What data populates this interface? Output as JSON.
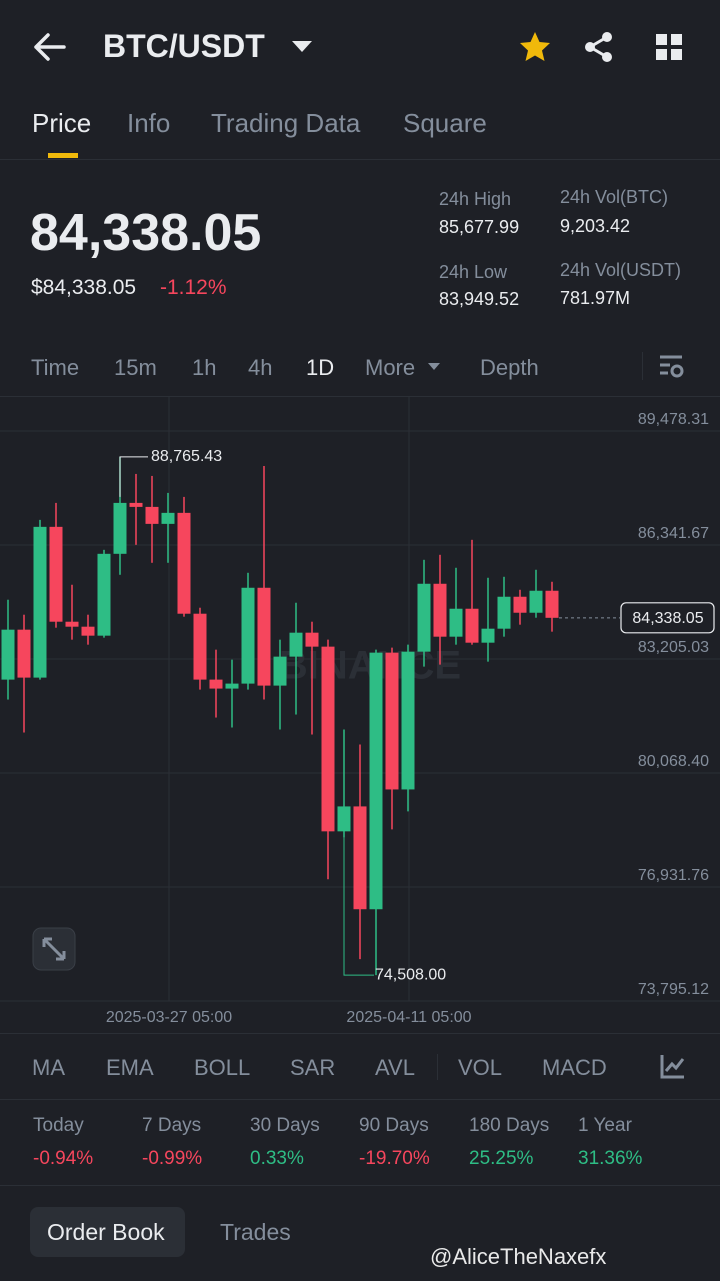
{
  "header": {
    "pair": "BTC/USDT"
  },
  "tabs": [
    "Price",
    "Info",
    "Trading Data",
    "Square"
  ],
  "price": {
    "last": "84,338.05",
    "usd": "$84,338.05",
    "change": "-1.12%"
  },
  "stats": [
    {
      "label": "24h High",
      "value": "85,677.99"
    },
    {
      "label": "24h Vol(BTC)",
      "value": "9,203.42"
    },
    {
      "label": "24h Low",
      "value": "83,949.52"
    },
    {
      "label": "24h Vol(USDT)",
      "value": "781.97M"
    }
  ],
  "intervals": [
    "Time",
    "15m",
    "1h",
    "4h",
    "1D",
    "More",
    "Depth"
  ],
  "chart": {
    "type": "candlestick",
    "watermark": "BINANCE",
    "up_color": "#2ebd85",
    "down_color": "#f6465d",
    "ylim": [
      73795.12,
      89478.31
    ],
    "yticks": [
      {
        "value": 89478.31,
        "label": "89,478.31"
      },
      {
        "value": 86341.67,
        "label": "86,341.67"
      },
      {
        "value": 83205.03,
        "label": "83,205.03"
      },
      {
        "value": 80068.4,
        "label": "80,068.40"
      },
      {
        "value": 76931.76,
        "label": "76,931.76"
      },
      {
        "value": 73795.12,
        "label": "73,795.12"
      }
    ],
    "high_label": "88,765.43",
    "low_label": "74,508.00",
    "last_label": "84,338.05",
    "x": [
      null,
      null,
      null,
      null,
      null,
      null,
      null,
      null,
      null,
      null,
      "2025-03-27 05:00",
      null,
      null,
      null,
      null,
      null,
      null,
      null,
      null,
      null,
      null,
      null,
      null,
      null,
      null,
      "2025-04-11 05:00",
      null,
      null,
      null,
      null,
      null,
      null,
      null,
      null,
      null
    ],
    "candles": [
      {
        "open": 82638,
        "high": 84836,
        "low": 82089,
        "close": 84012
      },
      {
        "open": 84012,
        "high": 84424,
        "low": 81182,
        "close": 82693
      },
      {
        "open": 82693,
        "high": 87033,
        "low": 82638,
        "close": 86841
      },
      {
        "open": 86841,
        "high": 87500,
        "low": 84066,
        "close": 84231
      },
      {
        "open": 84231,
        "high": 85248,
        "low": 83737,
        "close": 84094
      },
      {
        "open": 84094,
        "high": 84424,
        "low": 83599,
        "close": 83847
      },
      {
        "open": 83847,
        "high": 86209,
        "low": 83792,
        "close": 86099
      },
      {
        "open": 86099,
        "high": 88765.43,
        "low": 85522,
        "close": 87500
      },
      {
        "open": 87500,
        "high": 88297,
        "low": 86346,
        "close": 87390
      },
      {
        "open": 87390,
        "high": 88242,
        "low": 85852,
        "close": 86923
      },
      {
        "open": 86923,
        "high": 87775,
        "low": 85852,
        "close": 87226
      },
      {
        "open": 87226,
        "high": 87665,
        "low": 84369,
        "close": 84451
      },
      {
        "open": 84451,
        "high": 84616,
        "low": 82363,
        "close": 82638
      },
      {
        "open": 82638,
        "high": 83462,
        "low": 81594,
        "close": 82391
      },
      {
        "open": 82391,
        "high": 83187,
        "low": 81320,
        "close": 82528
      },
      {
        "open": 82528,
        "high": 85577,
        "low": 82363,
        "close": 85165
      },
      {
        "open": 85165,
        "high": 88517,
        "low": 82089,
        "close": 82473
      },
      {
        "open": 82473,
        "high": 83737,
        "low": 81265,
        "close": 83270
      },
      {
        "open": 83270,
        "high": 84753,
        "low": 81677,
        "close": 83929
      },
      {
        "open": 83929,
        "high": 84231,
        "low": 81127,
        "close": 83545
      },
      {
        "open": 83545,
        "high": 83737,
        "low": 77144,
        "close": 78463
      },
      {
        "open": 78463,
        "high": 81265,
        "low": 78300,
        "close": 79149
      },
      {
        "open": 79149,
        "high": 80853,
        "low": 74947,
        "close": 76320
      },
      {
        "open": 76320,
        "high": 83462,
        "low": 74508,
        "close": 83380
      },
      {
        "open": 83380,
        "high": 83517,
        "low": 78518,
        "close": 79616
      },
      {
        "open": 79616,
        "high": 83599,
        "low": 79012,
        "close": 83407
      },
      {
        "open": 83407,
        "high": 85934,
        "low": 82995,
        "close": 85275
      },
      {
        "open": 85275,
        "high": 86072,
        "low": 83050,
        "close": 83819
      },
      {
        "open": 83819,
        "high": 85715,
        "low": 83599,
        "close": 84588
      },
      {
        "open": 84588,
        "high": 86484,
        "low": 83599,
        "close": 83654
      },
      {
        "open": 83654,
        "high": 85440,
        "low": 83132,
        "close": 84039
      },
      {
        "open": 84039,
        "high": 85467,
        "low": 83819,
        "close": 84918
      },
      {
        "open": 84918,
        "high": 85110,
        "low": 84149,
        "close": 84478
      },
      {
        "open": 84478,
        "high": 85660,
        "low": 84341,
        "close": 85083
      },
      {
        "open": 85083,
        "high": 85330,
        "low": 83957,
        "close": 84338.05
      }
    ]
  },
  "indicators": [
    "MA",
    "EMA",
    "BOLL",
    "SAR",
    "AVL",
    "VOL",
    "MACD"
  ],
  "performance": [
    {
      "period": "Today",
      "change": "-0.94%"
    },
    {
      "period": "7 Days",
      "change": "-0.99%"
    },
    {
      "period": "30 Days",
      "change": "0.33%"
    },
    {
      "period": "90 Days",
      "change": "-19.70%"
    },
    {
      "period": "180 Days",
      "change": "25.25%"
    },
    {
      "period": "1 Year",
      "change": "31.36%"
    }
  ],
  "bottom_tabs": [
    "Order Book",
    "Trades"
  ],
  "watermark": "@AliceTheNaxefx"
}
